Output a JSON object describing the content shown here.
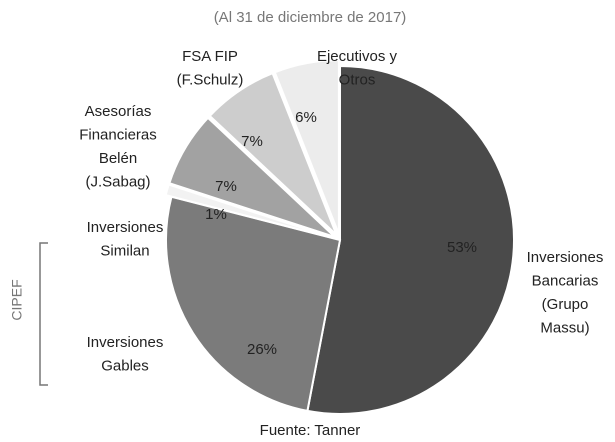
{
  "chart_data": {
    "type": "pie",
    "subtitle": "(Al 31 de diciembre de 2017)",
    "source": "Fuente: Tanner",
    "group_label": "CIPEF",
    "categories": [
      [
        "Inversiones",
        "Bancarias",
        "(Grupo",
        "Massu)"
      ],
      [
        "Inversiones",
        "Gables"
      ],
      [
        "Inversiones",
        "Similan"
      ],
      [
        "Asesorías",
        "Financieras",
        "Belén",
        "(J.Sabag)"
      ],
      [
        "FSA FIP",
        "(F.Schulz)"
      ],
      [
        "Ejecutivos  y",
        "Otros"
      ]
    ],
    "values": [
      53,
      26,
      1,
      7,
      7,
      6
    ],
    "value_labels": [
      "53%",
      "26%",
      "1%",
      "7%",
      "7%",
      "6%"
    ],
    "colors": [
      "#4a4a4a",
      "#7b7b7b",
      "#f2f2f2",
      "#a2a2a2",
      "#cdcdcd",
      "#ececec"
    ]
  }
}
